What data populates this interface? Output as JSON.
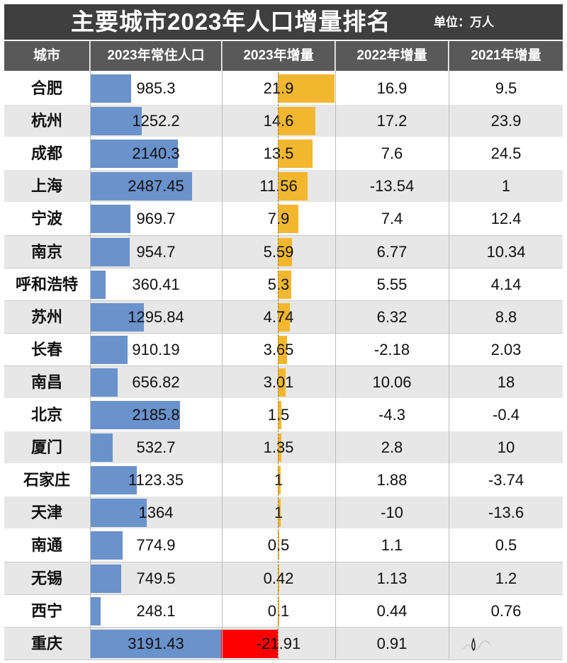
{
  "title": "主要城市2023年人口增量排名",
  "unit": "单位：万人",
  "colors": {
    "pop_bar": "#6a92cb",
    "inc_bar": "#f3b72f",
    "neg_bar": "#ff0000",
    "header_bg": "#595959",
    "title_bg": "#3f3f3f"
  },
  "headers": [
    "城市",
    "2023年常住人口",
    "2023年增量",
    "2022年增量",
    "2021年增量"
  ],
  "chart_data": {
    "type": "table",
    "title": "主要城市2023年人口增量排名",
    "unit": "万人",
    "columns": [
      "城市",
      "2023年常住人口",
      "2023年增量",
      "2022年增量",
      "2021年增量"
    ],
    "rows": [
      {
        "city": "合肥",
        "pop_label": "985.3",
        "pop": 985.3,
        "inc23_label": "21.9",
        "inc23": 21.9,
        "inc22": "16.9",
        "inc21": "9.5"
      },
      {
        "city": "杭州",
        "pop_label": "1252.2",
        "pop": 1252.2,
        "inc23_label": "14.6",
        "inc23": 14.6,
        "inc22": "17.2",
        "inc21": "23.9"
      },
      {
        "city": "成都",
        "pop_label": "2140.3",
        "pop": 2140.3,
        "inc23_label": "13.5",
        "inc23": 13.5,
        "inc22": "7.6",
        "inc21": "24.5"
      },
      {
        "city": "上海",
        "pop_label": "2487.45",
        "pop": 2487.45,
        "inc23_label": "11.56",
        "inc23": 11.56,
        "inc22": "-13.54",
        "inc21": "1"
      },
      {
        "city": "宁波",
        "pop_label": "969.7",
        "pop": 969.7,
        "inc23_label": "7.9",
        "inc23": 7.9,
        "inc22": "7.4",
        "inc21": "12.4"
      },
      {
        "city": "南京",
        "pop_label": "954.7",
        "pop": 954.7,
        "inc23_label": "5.59",
        "inc23": 5.59,
        "inc22": "6.77",
        "inc21": "10.34"
      },
      {
        "city": "呼和浩特",
        "pop_label": "360.41",
        "pop": 360.41,
        "inc23_label": "5.3",
        "inc23": 5.3,
        "inc22": "5.55",
        "inc21": "4.14"
      },
      {
        "city": "苏州",
        "pop_label": "1295.84",
        "pop": 1295.84,
        "inc23_label": "4.74",
        "inc23": 4.74,
        "inc22": "6.32",
        "inc21": "8.8"
      },
      {
        "city": "长春",
        "pop_label": "910.19",
        "pop": 910.19,
        "inc23_label": "3.65",
        "inc23": 3.65,
        "inc22": "-2.18",
        "inc21": "2.03"
      },
      {
        "city": "南昌",
        "pop_label": "656.82",
        "pop": 656.82,
        "inc23_label": "3.01",
        "inc23": 3.01,
        "inc22": "10.06",
        "inc21": "18"
      },
      {
        "city": "北京",
        "pop_label": "2185.8",
        "pop": 2185.8,
        "inc23_label": "1.5",
        "inc23": 1.5,
        "inc22": "-4.3",
        "inc21": "-0.4"
      },
      {
        "city": "厦门",
        "pop_label": "532.7",
        "pop": 532.7,
        "inc23_label": "1.35",
        "inc23": 1.35,
        "inc22": "2.8",
        "inc21": "10"
      },
      {
        "city": "石家庄",
        "pop_label": "1123.35",
        "pop": 1123.35,
        "inc23_label": "1",
        "inc23": 1,
        "inc22": "1.88",
        "inc21": "-3.74"
      },
      {
        "city": "天津",
        "pop_label": "1364",
        "pop": 1364,
        "inc23_label": "1",
        "inc23": 1,
        "inc22": "-10",
        "inc21": "-13.6"
      },
      {
        "city": "南通",
        "pop_label": "774.9",
        "pop": 774.9,
        "inc23_label": "0.5",
        "inc23": 0.5,
        "inc22": "1.1",
        "inc21": "0.5"
      },
      {
        "city": "无锡",
        "pop_label": "749.5",
        "pop": 749.5,
        "inc23_label": "0.42",
        "inc23": 0.42,
        "inc22": "1.13",
        "inc21": "1.2"
      },
      {
        "city": "西宁",
        "pop_label": "248.1",
        "pop": 248.1,
        "inc23_label": "0.1",
        "inc23": 0.1,
        "inc22": "0.44",
        "inc21": "0.76"
      },
      {
        "city": "重庆",
        "pop_label": "3191.43",
        "pop": 3191.43,
        "inc23_label": "-21.91",
        "inc23": -21.91,
        "inc22": "0.91",
        "inc21": ""
      }
    ]
  }
}
